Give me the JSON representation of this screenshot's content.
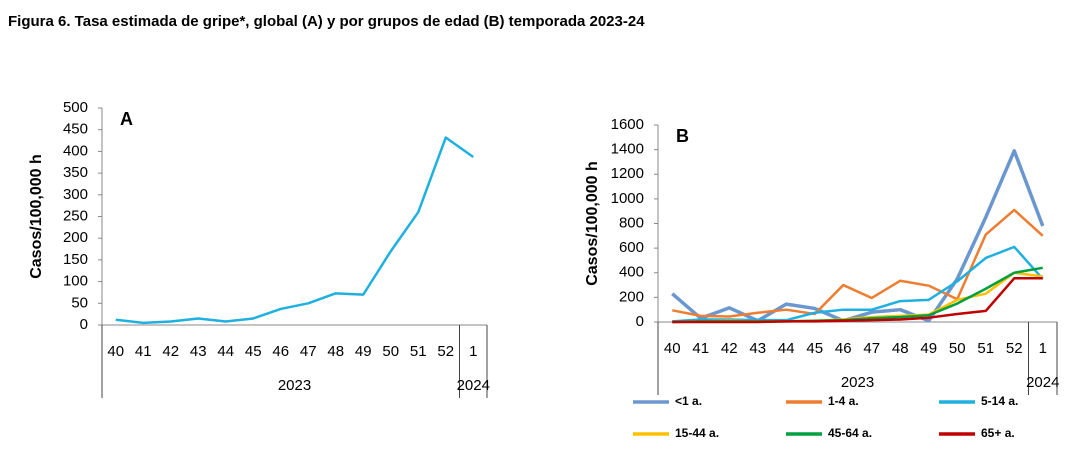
{
  "figure_title": "Figura 6. Tasa estimada de gripe*, global (A) y por grupos de edad (B) temporada 2023-24",
  "chart_data": [
    {
      "type": "line",
      "panel_label": "A",
      "y_label": "Casos/100,000 h",
      "categories": [
        "40",
        "41",
        "42",
        "43",
        "44",
        "45",
        "46",
        "47",
        "48",
        "49",
        "50",
        "51",
        "52",
        "1"
      ],
      "years": [
        null,
        null,
        null,
        null,
        null,
        null,
        "2023",
        null,
        null,
        null,
        null,
        null,
        null,
        "2024"
      ],
      "series": [
        {
          "color": "#1fb0e0",
          "values": [
            12,
            5,
            8,
            15,
            8,
            15,
            37,
            50,
            73,
            70,
            170,
            260,
            432,
            387
          ]
        }
      ],
      "ylim": [
        0,
        500
      ],
      "yticks": [
        0,
        50,
        100,
        150,
        200,
        250,
        300,
        350,
        400,
        450,
        500
      ]
    },
    {
      "type": "line",
      "panel_label": "B",
      "y_label": "Casos/100,000 h",
      "categories": [
        "40",
        "41",
        "42",
        "43",
        "44",
        "45",
        "46",
        "47",
        "48",
        "49",
        "50",
        "51",
        "52",
        "1"
      ],
      "years": [
        null,
        null,
        null,
        null,
        null,
        null,
        "2023",
        null,
        null,
        null,
        null,
        null,
        null,
        "2024"
      ],
      "series": [
        {
          "name": "<1 a.",
          "color": "#6a97cf",
          "values": [
            230,
            30,
            115,
            10,
            145,
            110,
            10,
            80,
            100,
            10,
            350,
            850,
            1390,
            780
          ]
        },
        {
          "name": "1-4 a.",
          "color": "#ed7d31",
          "values": [
            95,
            50,
            45,
            75,
            100,
            65,
            300,
            195,
            335,
            295,
            185,
            710,
            910,
            700
          ]
        },
        {
          "name": "5-14 a.",
          "color": "#1fb0e0",
          "values": [
            5,
            20,
            20,
            15,
            15,
            75,
            100,
            100,
            170,
            180,
            330,
            520,
            610,
            350
          ]
        },
        {
          "name": "15-44 a.",
          "color": "#ffc000",
          "values": [
            0,
            5,
            10,
            5,
            5,
            10,
            20,
            40,
            50,
            60,
            180,
            230,
            400,
            370
          ]
        },
        {
          "name": "45-64 a.",
          "color": "#00a040",
          "values": [
            0,
            5,
            5,
            5,
            5,
            10,
            15,
            30,
            40,
            55,
            150,
            270,
            400,
            440
          ]
        },
        {
          "name": "65+ a.",
          "color": "#c00000",
          "values": [
            0,
            0,
            0,
            0,
            5,
            5,
            10,
            15,
            20,
            35,
            65,
            90,
            355,
            355
          ]
        }
      ],
      "ylim": [
        0,
        1600
      ],
      "yticks": [
        0,
        200,
        400,
        600,
        800,
        1000,
        1200,
        1400,
        1600
      ]
    }
  ]
}
